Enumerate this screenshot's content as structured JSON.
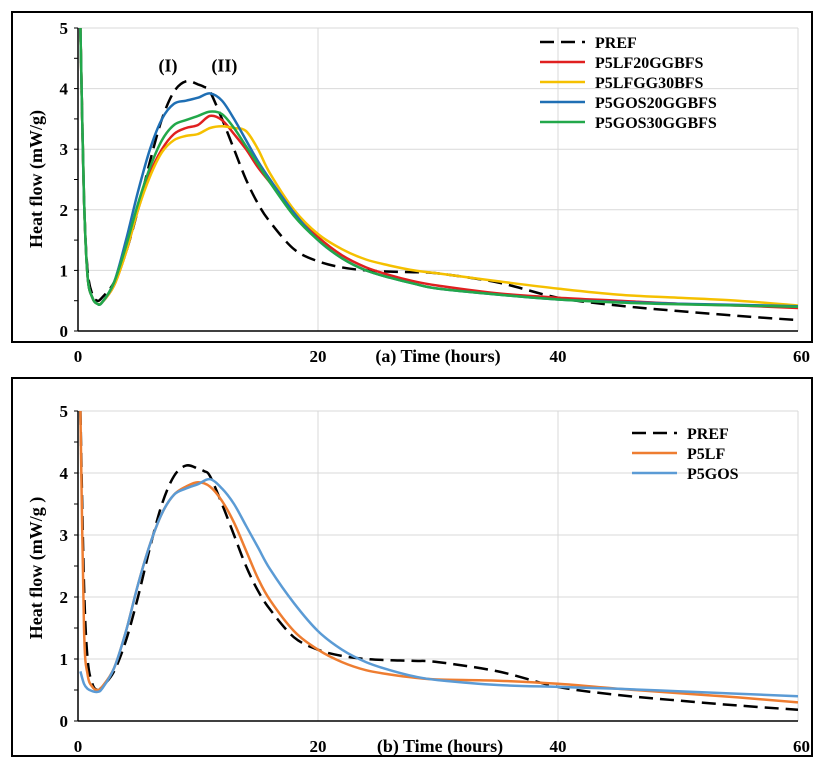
{
  "chart_data": [
    {
      "type": "line",
      "xlabel": "(a) Time (hours)",
      "ylabel": "Heat flow (mW/g)",
      "xlim": [
        0,
        60
      ],
      "ylim": [
        0,
        5
      ],
      "xticks": [
        "0",
        "20",
        "40",
        "60"
      ],
      "yticks": [
        "0",
        "1",
        "2",
        "3",
        "4",
        "5"
      ],
      "grid": true,
      "legend_position": "top-right",
      "annotations": [
        {
          "text": "(I)",
          "x": 7.5,
          "y": 4.28
        },
        {
          "text": "(II)",
          "x": 12.2,
          "y": 4.28
        }
      ],
      "series": [
        {
          "name": "PREF",
          "color": "#000000",
          "dash": true,
          "x": [
            0.2,
            0.5,
            0.8,
            1.2,
            1.6,
            2,
            3,
            4,
            5,
            6,
            7,
            8,
            9,
            10,
            10.5,
            11,
            12,
            13,
            14,
            15,
            16,
            18,
            20,
            22,
            24,
            26,
            28,
            30,
            35,
            40,
            45,
            50,
            55,
            60
          ],
          "y": [
            5.0,
            2.2,
            1.0,
            0.6,
            0.5,
            0.55,
            0.8,
            1.3,
            2.0,
            2.8,
            3.5,
            3.95,
            4.12,
            4.07,
            4.03,
            3.95,
            3.5,
            3.0,
            2.5,
            2.1,
            1.8,
            1.35,
            1.15,
            1.05,
            1.0,
            0.98,
            0.97,
            0.95,
            0.8,
            0.55,
            0.42,
            0.33,
            0.25,
            0.18
          ]
        },
        {
          "name": "P5LF20GGBFS",
          "color": "#e02020",
          "dash": false,
          "x": [
            0.2,
            0.5,
            0.8,
            1.2,
            1.6,
            2,
            3,
            4,
            5,
            6,
            7,
            8,
            9,
            10,
            11,
            12,
            13,
            14,
            15,
            16,
            18,
            20,
            22,
            24,
            26,
            28,
            30,
            35,
            40,
            45,
            50,
            55,
            60
          ],
          "y": [
            5.0,
            2.2,
            0.9,
            0.55,
            0.45,
            0.47,
            0.75,
            1.3,
            2.0,
            2.6,
            3.0,
            3.25,
            3.35,
            3.4,
            3.55,
            3.48,
            3.25,
            3.0,
            2.7,
            2.45,
            1.95,
            1.55,
            1.25,
            1.05,
            0.92,
            0.82,
            0.75,
            0.62,
            0.55,
            0.5,
            0.45,
            0.42,
            0.38
          ]
        },
        {
          "name": "P5LFGG30BFS",
          "color": "#f5c000",
          "dash": false,
          "x": [
            0.2,
            0.5,
            0.8,
            1.2,
            1.6,
            2,
            3,
            4,
            5,
            6,
            7,
            8,
            9,
            10,
            11,
            12,
            13,
            14,
            15,
            16,
            18,
            20,
            22,
            24,
            26,
            28,
            30,
            35,
            40,
            45,
            50,
            55,
            60
          ],
          "y": [
            5.0,
            2.2,
            0.9,
            0.55,
            0.45,
            0.47,
            0.75,
            1.3,
            2.0,
            2.55,
            2.95,
            3.15,
            3.22,
            3.25,
            3.35,
            3.38,
            3.35,
            3.3,
            3.0,
            2.6,
            2.0,
            1.6,
            1.35,
            1.18,
            1.08,
            1.0,
            0.95,
            0.82,
            0.7,
            0.6,
            0.55,
            0.5,
            0.42
          ]
        },
        {
          "name": "P5GOS20GGBFS",
          "color": "#1f6fb4",
          "dash": false,
          "x": [
            0.2,
            0.5,
            0.8,
            1.2,
            1.6,
            2,
            3,
            4,
            5,
            6,
            7,
            8,
            9,
            10,
            11,
            12,
            13,
            14,
            15,
            16,
            18,
            20,
            22,
            24,
            26,
            28,
            30,
            35,
            40,
            45,
            50,
            55,
            60
          ],
          "y": [
            5.0,
            2.2,
            0.9,
            0.55,
            0.45,
            0.47,
            0.8,
            1.5,
            2.3,
            3.0,
            3.5,
            3.75,
            3.8,
            3.85,
            3.92,
            3.8,
            3.5,
            3.15,
            2.8,
            2.5,
            1.95,
            1.5,
            1.2,
            1.0,
            0.88,
            0.78,
            0.7,
            0.6,
            0.52,
            0.48,
            0.45,
            0.43,
            0.41
          ]
        },
        {
          "name": "P5GOS30GGBFS",
          "color": "#22a84a",
          "dash": false,
          "x": [
            0.2,
            0.5,
            0.8,
            1.2,
            1.6,
            2,
            3,
            4,
            5,
            6,
            7,
            8,
            9,
            10,
            11,
            12,
            13,
            14,
            15,
            16,
            18,
            20,
            22,
            24,
            26,
            28,
            30,
            35,
            40,
            45,
            50,
            55,
            60
          ],
          "y": [
            5.0,
            2.2,
            0.9,
            0.55,
            0.45,
            0.47,
            0.8,
            1.4,
            2.1,
            2.7,
            3.15,
            3.4,
            3.48,
            3.55,
            3.62,
            3.58,
            3.35,
            3.05,
            2.75,
            2.45,
            1.9,
            1.5,
            1.2,
            1.0,
            0.88,
            0.78,
            0.7,
            0.6,
            0.52,
            0.47,
            0.44,
            0.42,
            0.4
          ]
        }
      ]
    },
    {
      "type": "line",
      "xlabel": "(b) Time (hours)",
      "ylabel": "Heat flow (mW/g )",
      "xlim": [
        0,
        60
      ],
      "ylim": [
        0,
        5
      ],
      "xticks": [
        "0",
        "20",
        "40",
        "60"
      ],
      "yticks": [
        "0",
        "1",
        "2",
        "3",
        "4",
        "5"
      ],
      "grid": true,
      "legend_position": "top-right",
      "annotations": [],
      "series": [
        {
          "name": "PREF",
          "color": "#000000",
          "dash": true,
          "x": [
            0.2,
            0.5,
            0.8,
            1.2,
            1.6,
            2,
            3,
            4,
            5,
            6,
            7,
            8,
            9,
            10,
            10.5,
            11,
            12,
            13,
            14,
            15,
            16,
            18,
            20,
            22,
            24,
            26,
            28,
            30,
            35,
            40,
            45,
            50,
            55,
            60
          ],
          "y": [
            5.0,
            2.2,
            1.0,
            0.6,
            0.5,
            0.55,
            0.8,
            1.3,
            2.0,
            2.8,
            3.5,
            3.95,
            4.12,
            4.07,
            4.03,
            3.95,
            3.5,
            3.0,
            2.5,
            2.1,
            1.8,
            1.35,
            1.15,
            1.05,
            1.0,
            0.98,
            0.97,
            0.95,
            0.8,
            0.55,
            0.42,
            0.33,
            0.25,
            0.18
          ]
        },
        {
          "name": "P5LF",
          "color": "#ee7d31",
          "dash": false,
          "x": [
            0.2,
            0.5,
            0.8,
            1.2,
            1.6,
            2,
            3,
            4,
            5,
            6,
            7,
            8,
            9,
            10,
            11,
            12,
            13,
            14,
            15,
            16,
            18,
            20,
            22,
            24,
            26,
            28,
            30,
            35,
            40,
            45,
            50,
            55,
            60
          ],
          "y": [
            5.0,
            1.5,
            0.75,
            0.55,
            0.5,
            0.55,
            0.85,
            1.45,
            2.2,
            2.85,
            3.35,
            3.65,
            3.78,
            3.85,
            3.78,
            3.55,
            3.2,
            2.75,
            2.3,
            1.95,
            1.45,
            1.15,
            0.95,
            0.82,
            0.75,
            0.7,
            0.67,
            0.65,
            0.6,
            0.52,
            0.45,
            0.38,
            0.3
          ]
        },
        {
          "name": "P5GOS",
          "color": "#5b9bd5",
          "dash": false,
          "x": [
            0.2,
            0.5,
            0.8,
            1.2,
            1.6,
            2,
            3,
            4,
            5,
            6,
            7,
            8,
            9,
            10,
            11,
            12,
            13,
            14,
            15,
            16,
            18,
            20,
            22,
            24,
            26,
            28,
            30,
            35,
            40,
            45,
            50,
            55,
            60
          ],
          "y": [
            0.8,
            0.6,
            0.52,
            0.48,
            0.47,
            0.52,
            0.85,
            1.45,
            2.2,
            2.85,
            3.35,
            3.65,
            3.75,
            3.82,
            3.9,
            3.75,
            3.5,
            3.15,
            2.8,
            2.45,
            1.9,
            1.45,
            1.15,
            0.95,
            0.82,
            0.72,
            0.66,
            0.58,
            0.55,
            0.52,
            0.48,
            0.44,
            0.4
          ]
        }
      ]
    }
  ]
}
